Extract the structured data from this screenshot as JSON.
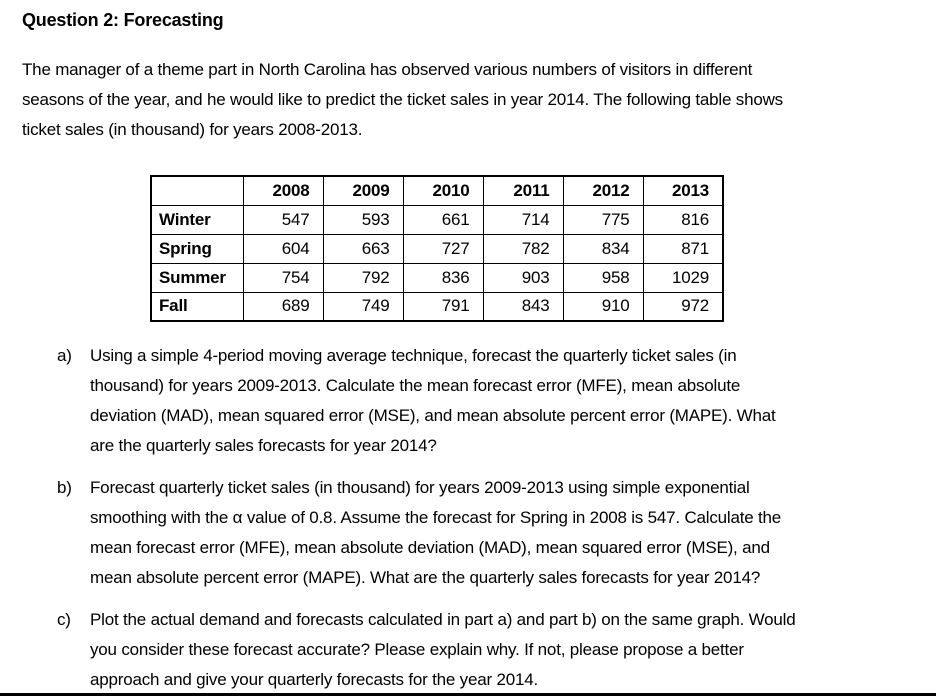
{
  "page": {
    "title": "Question 2: Forecasting",
    "intro": "The manager of a theme part in North Carolina has observed various numbers of visitors in different\nseasons of the year, and he would like to predict the ticket sales in year 2014. The following table shows\nticket sales (in thousand) for years 2008-2013.",
    "text_color": "#000000",
    "background_color": "#ffffff"
  },
  "table": {
    "corner_label": "",
    "columns": [
      "2008",
      "2009",
      "2010",
      "2011",
      "2012",
      "2013"
    ],
    "rows": [
      {
        "label": "Winter",
        "values": [
          547,
          593,
          661,
          714,
          775,
          816
        ]
      },
      {
        "label": "Spring",
        "values": [
          604,
          663,
          727,
          782,
          834,
          871
        ]
      },
      {
        "label": "Summer",
        "values": [
          754,
          792,
          836,
          903,
          958,
          1029
        ]
      },
      {
        "label": "Fall",
        "values": [
          689,
          749,
          791,
          843,
          910,
          972
        ]
      }
    ]
  },
  "questions": [
    {
      "marker": "a)",
      "text": "Using a simple 4-period moving average technique, forecast the quarterly ticket sales (in\nthousand) for years 2009-2013. Calculate the mean forecast error (MFE), mean absolute\ndeviation (MAD), mean squared error (MSE), and mean absolute percent error (MAPE). What\nare the quarterly sales forecasts for year 2014?"
    },
    {
      "marker": "b)",
      "text": "Forecast quarterly ticket sales (in thousand) for years 2009-2013 using simple exponential\nsmoothing with the α value of 0.8. Assume the forecast for Spring in 2008 is 547. Calculate the\nmean forecast error (MFE), mean absolute deviation (MAD), mean squared error (MSE), and\nmean absolute percent error (MAPE). What are the quarterly sales forecasts for year 2014?"
    },
    {
      "marker": "c)",
      "text": "Plot the actual demand and forecasts calculated in part a) and part b) on the same graph. Would\nyou consider these forecast accurate? Please explain why. If not, please propose a better\napproach and give your quarterly forecasts for the year 2014."
    }
  ]
}
